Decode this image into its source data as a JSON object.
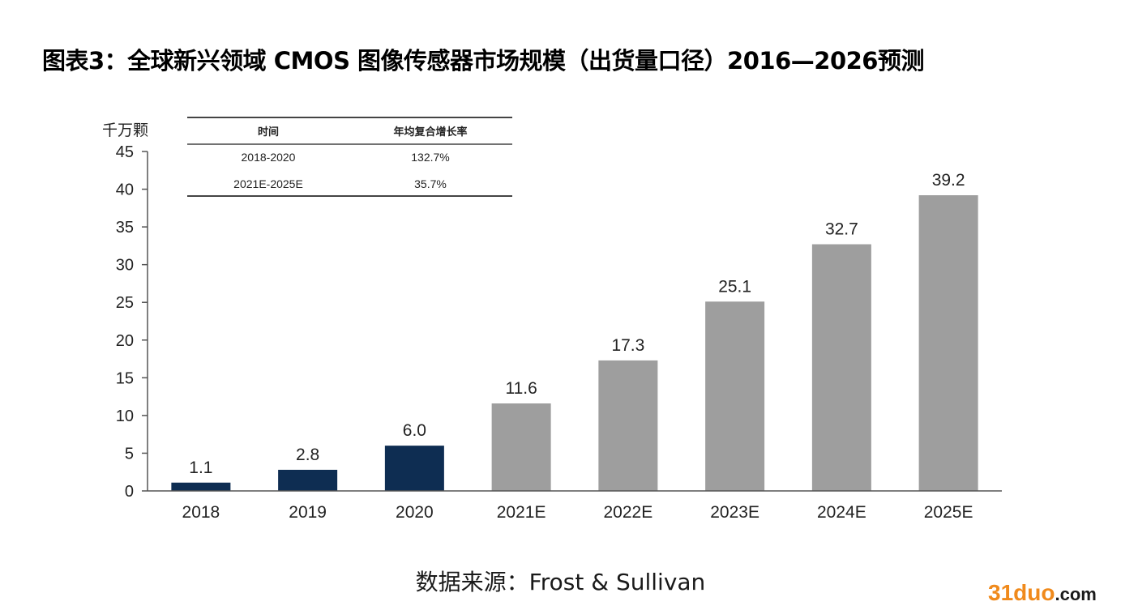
{
  "title": "图表3：全球新兴领域 CMOS 图像传感器市场规模（出货量口径）2016—2026预测",
  "source": "数据来源：Frost & Sullivan",
  "watermark": {
    "part1": "31duo",
    "part2": ".com"
  },
  "colors": {
    "actual": "#0e2d52",
    "forecast": "#9e9e9e",
    "axis": "#555555",
    "text": "#222222"
  },
  "cagr_table": {
    "headers": [
      "时间",
      "年均复合增长率"
    ],
    "rows": [
      [
        "2018-2020",
        "132.7%"
      ],
      [
        "2021E-2025E",
        "35.7%"
      ]
    ]
  },
  "chart_data": {
    "type": "bar",
    "ylabel": "千万颗",
    "xlabel": "",
    "ylim": [
      0,
      45
    ],
    "yticks": [
      0,
      5,
      10,
      15,
      20,
      25,
      30,
      35,
      40,
      45
    ],
    "grid": false,
    "categories": [
      "2018",
      "2019",
      "2020",
      "2021E",
      "2022E",
      "2023E",
      "2024E",
      "2025E"
    ],
    "values": [
      1.1,
      2.8,
      6.0,
      11.6,
      17.3,
      25.1,
      32.7,
      39.2
    ],
    "data_labels": [
      "1.1",
      "2.8",
      "6.0",
      "11.6",
      "17.3",
      "25.1",
      "32.7",
      "39.2"
    ],
    "forecast": [
      false,
      false,
      false,
      true,
      true,
      true,
      true,
      true
    ]
  }
}
